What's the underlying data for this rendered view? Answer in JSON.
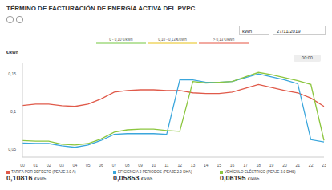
{
  "chart_data": {
    "type": "line",
    "title": "TÉRMINO DE FACTURACIÓN DE ENERGÍA ACTIVA DEL PVPC",
    "unit_selector": "kWh",
    "date": "27/11/2019",
    "time_label": "00:00",
    "ylabel": "€/kWh",
    "ranges": [
      {
        "label": "0 - 0,10 €/kWh",
        "color": "#b9e39f"
      },
      {
        "label": "0,10 - 0,13 €/kWh",
        "color": "#f3e08a"
      },
      {
        "label": "> 0,13 €/kWh",
        "color": "#f2a9a0"
      }
    ],
    "categories": [
      "00",
      "01",
      "02",
      "03",
      "04",
      "05",
      "06",
      "07",
      "08",
      "09",
      "10",
      "11",
      "12",
      "13",
      "14",
      "15",
      "16",
      "17",
      "18",
      "19",
      "20",
      "21",
      "22",
      "23"
    ],
    "ylim": [
      0.04,
      0.165
    ],
    "yticks": [
      {
        "value": 0.05,
        "label": "0,05"
      },
      {
        "value": 0.1,
        "label": "0,1"
      },
      {
        "value": 0.15,
        "label": "0,15"
      }
    ],
    "grid": false,
    "series": [
      {
        "name": "TARIFA POR DEFECTO (PEAJE 2.0 A)",
        "color": "#e05a4a",
        "value_label": "0,10816 €/kWh",
        "values": [
          0.10816,
          0.11,
          0.11,
          0.108,
          0.107,
          0.11,
          0.117,
          0.126,
          0.128,
          0.129,
          0.129,
          0.128,
          0.128,
          0.125,
          0.124,
          0.124,
          0.126,
          0.131,
          0.136,
          0.132,
          0.128,
          0.125,
          0.118,
          0.107
        ]
      },
      {
        "name": "EFICIENCIA 2 PERIODOS (PEAJE 2.0 DHA)",
        "color": "#3aa6dc",
        "value_label": "0,05853 €/kWh",
        "values": [
          0.05853,
          0.058,
          0.058,
          0.055,
          0.053,
          0.056,
          0.062,
          0.07,
          0.071,
          0.071,
          0.071,
          0.07,
          0.142,
          0.142,
          0.139,
          0.139,
          0.14,
          0.145,
          0.15,
          0.146,
          0.142,
          0.137,
          0.063,
          0.06
        ]
      },
      {
        "name": "VEHÍCULO ELÉCTRICO (PEAJE 2.0 DHS)",
        "color": "#8cc63f",
        "value_label": "0,06195 €/kWh",
        "values": [
          0.06195,
          0.061,
          0.061,
          0.057,
          0.056,
          0.058,
          0.064,
          0.073,
          0.076,
          0.077,
          0.077,
          0.075,
          0.074,
          0.14,
          0.138,
          0.139,
          0.14,
          0.146,
          0.152,
          0.149,
          0.145,
          0.141,
          0.136,
          0.062
        ]
      }
    ]
  }
}
